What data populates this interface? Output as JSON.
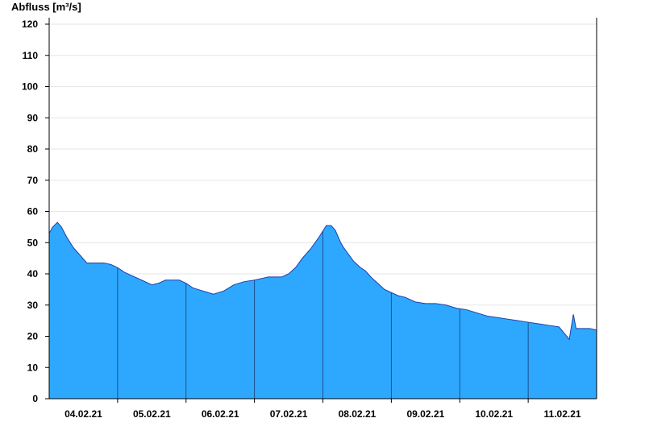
{
  "chart_data": {
    "type": "area",
    "title": "",
    "ylabel": "Abfluss [m³/s]",
    "xlabel": "",
    "ylim": [
      0,
      122
    ],
    "y_ticks": [
      0,
      10,
      20,
      30,
      40,
      50,
      60,
      70,
      80,
      90,
      100,
      110,
      120
    ],
    "x_range": [
      0,
      8
    ],
    "x_day_boundaries": [
      1,
      2,
      3,
      4,
      5,
      6,
      7
    ],
    "x_tick_labels": [
      {
        "x": 0.5,
        "label": "04.02.21"
      },
      {
        "x": 1.5,
        "label": "05.02.21"
      },
      {
        "x": 2.5,
        "label": "06.02.21"
      },
      {
        "x": 3.5,
        "label": "07.02.21"
      },
      {
        "x": 4.5,
        "label": "08.02.21"
      },
      {
        "x": 5.5,
        "label": "09.02.21"
      },
      {
        "x": 6.5,
        "label": "10.02.21"
      },
      {
        "x": 7.5,
        "label": "11.02.21"
      }
    ],
    "grid": true,
    "colors": {
      "fill": "#2ea8ff",
      "line": "#1f3fa6",
      "day_line": "#1f4f8a",
      "grid": "#e6e6e6",
      "axis": "#000000"
    },
    "series": [
      {
        "x": [
          0.0,
          0.05,
          0.12,
          0.18,
          0.25,
          0.35,
          0.45,
          0.55,
          0.62,
          0.7,
          0.8,
          0.9,
          1.0,
          1.1,
          1.2,
          1.35,
          1.5,
          1.6,
          1.7,
          1.8,
          1.9,
          2.0,
          2.1,
          2.25,
          2.4,
          2.55,
          2.7,
          2.85,
          3.0,
          3.1,
          3.2,
          3.3,
          3.4,
          3.5,
          3.6,
          3.7,
          3.82,
          3.95,
          4.05,
          4.12,
          4.18,
          4.22,
          4.26,
          4.3,
          4.35,
          4.4,
          4.45,
          4.5,
          4.55,
          4.62,
          4.7,
          4.8,
          4.9,
          5.0,
          5.1,
          5.2,
          5.35,
          5.5,
          5.65,
          5.8,
          5.95,
          6.1,
          6.25,
          6.4,
          6.55,
          6.7,
          6.85,
          7.0,
          7.15,
          7.3,
          7.45,
          7.6,
          7.66,
          7.7,
          7.72,
          7.75,
          7.78,
          7.82,
          7.9,
          8.0
        ],
        "y": [
          53,
          55,
          56.5,
          55,
          52,
          48.5,
          46,
          43.5,
          43.5,
          43.5,
          43.5,
          43,
          42,
          40.5,
          39.5,
          38,
          36.5,
          37,
          38,
          38,
          38,
          37,
          35.5,
          34.5,
          33.5,
          34.5,
          36.5,
          37.5,
          38,
          38.5,
          39,
          39,
          39,
          40,
          42,
          45,
          48,
          52,
          55.5,
          55.5,
          54,
          52,
          50,
          48.5,
          47,
          45.5,
          44,
          43,
          42,
          41,
          39,
          37,
          35,
          34,
          33,
          32.5,
          31,
          30.5,
          30.5,
          30,
          29,
          28.5,
          27.5,
          26.5,
          26,
          25.5,
          25,
          24.5,
          24,
          23.5,
          23,
          19,
          27,
          22.5,
          22.5,
          22.5,
          22.5,
          22.5,
          22.5,
          22
        ]
      }
    ]
  }
}
